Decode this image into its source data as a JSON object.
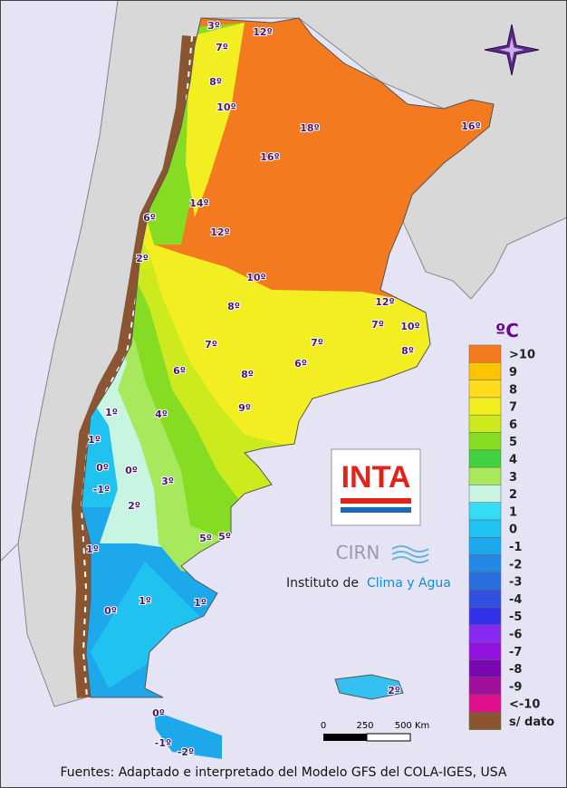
{
  "legend": {
    "title": "ºC",
    "items": [
      {
        "label": ">10",
        "color": "#f47a20"
      },
      {
        "label": "9",
        "color": "#ffc400"
      },
      {
        "label": "8",
        "color": "#ffdc1e"
      },
      {
        "label": "7",
        "color": "#f2ee22"
      },
      {
        "label": "6",
        "color": "#cdea1e"
      },
      {
        "label": "5",
        "color": "#86dc22"
      },
      {
        "label": "4",
        "color": "#40d040"
      },
      {
        "label": "3",
        "color": "#a8e85c"
      },
      {
        "label": "2",
        "color": "#c8f4e2"
      },
      {
        "label": "1",
        "color": "#34dcf4"
      },
      {
        "label": "0",
        "color": "#20c2f0"
      },
      {
        "label": "-1",
        "color": "#1ea8ec"
      },
      {
        "label": "-2",
        "color": "#2288e4"
      },
      {
        "label": "-3",
        "color": "#2a6ee0"
      },
      {
        "label": "-4",
        "color": "#3050e0"
      },
      {
        "label": "-5",
        "color": "#3232e8"
      },
      {
        "label": "-6",
        "color": "#8a28f4"
      },
      {
        "label": "-7",
        "color": "#9214e0"
      },
      {
        "label": "-8",
        "color": "#7a08b0"
      },
      {
        "label": "-9",
        "color": "#a0109a"
      },
      {
        "label": "<-10",
        "color": "#e0108e"
      },
      {
        "label": "s/ dato",
        "color": "#8a5530"
      }
    ]
  },
  "contour_labels": [
    "3º",
    "12º",
    "7º",
    "8º",
    "10º",
    "18º",
    "16º",
    "16º",
    "14º",
    "6º",
    "12º",
    "2º",
    "10º",
    "12º",
    "8º",
    "7º",
    "10º",
    "7º",
    "7º",
    "8º",
    "6º",
    "8º",
    "6º",
    "9º",
    "4º",
    "1º",
    "1º",
    "0º",
    "0º",
    "3º",
    "-1º",
    "2º",
    "5º",
    "5º",
    "1º",
    "1º",
    "1º",
    "0º",
    "2º",
    "0º",
    "-1º",
    "-2º"
  ],
  "logo": {
    "name": "INTA",
    "center": "CIRN",
    "institute_prefix": "Instituto de",
    "institute_highlight": "Clima y Agua"
  },
  "scale": {
    "labels": [
      "0",
      "250",
      "500 Km"
    ]
  },
  "source": "Fuentes: Adaptado e interpretado del Modelo GFS del COLA-IGES, USA"
}
